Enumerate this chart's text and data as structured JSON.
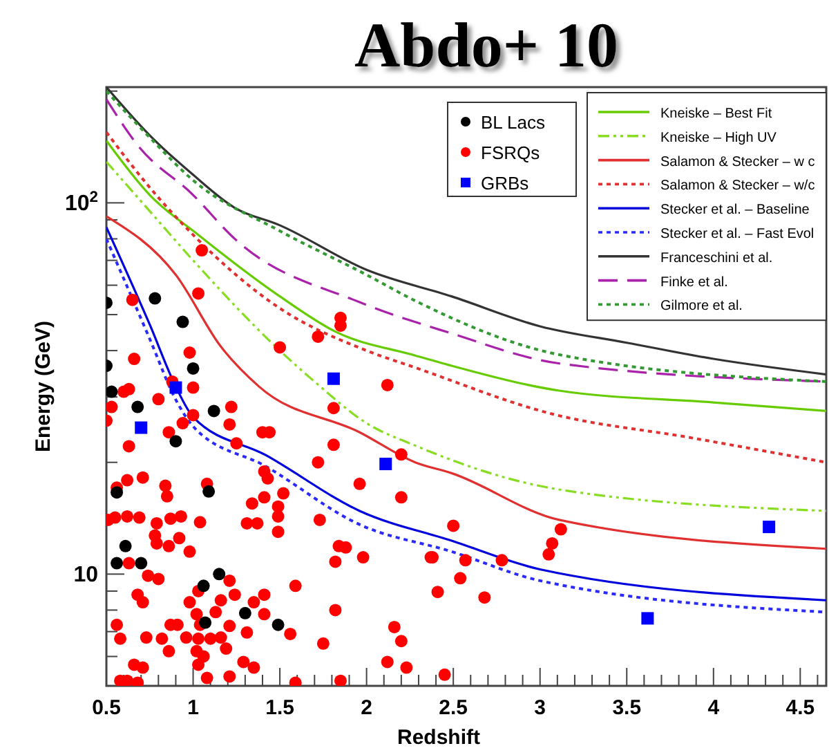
{
  "chart_data": {
    "type": "scatter",
    "title": "Abdo+ 10",
    "xlabel": "Redshift",
    "ylabel": "Energy (GeV)",
    "log": "y",
    "legend": "top right",
    "xlim": [
      0.5,
      4.65
    ],
    "ylim": [
      5,
      205
    ],
    "xticks": [
      0.5,
      {
        "value": 0.6,
        "label": null
      },
      {
        "value": 0.7,
        "label": null
      },
      {
        "value": 0.8,
        "label": null
      },
      {
        "value": 0.9,
        "label": null
      },
      1,
      {
        "value": 1.1,
        "label": null
      },
      {
        "value": 1.2,
        "label": null
      },
      {
        "value": 1.3,
        "label": null
      },
      {
        "value": 1.4,
        "label": null
      },
      1.5,
      {
        "value": 1.6,
        "label": null
      },
      {
        "value": 1.7,
        "label": null
      },
      {
        "value": 1.8,
        "label": null
      },
      {
        "value": 1.9,
        "label": null
      },
      2,
      {
        "value": 2.1,
        "label": null
      },
      {
        "value": 2.2,
        "label": null
      },
      {
        "value": 2.3,
        "label": null
      },
      {
        "value": 2.4,
        "label": null
      },
      2.5,
      {
        "value": 2.6,
        "label": null
      },
      {
        "value": 2.7,
        "label": null
      },
      {
        "value": 2.8,
        "label": null
      },
      {
        "value": 2.9,
        "label": null
      },
      3,
      {
        "value": 3.1,
        "label": null
      },
      {
        "value": 3.2,
        "label": null
      },
      {
        "value": 3.3,
        "label": null
      },
      {
        "value": 3.4,
        "label": null
      },
      3.5,
      {
        "value": 3.6,
        "label": null
      },
      {
        "value": 3.7,
        "label": null
      },
      {
        "value": 3.8,
        "label": null
      },
      {
        "value": 3.9,
        "label": null
      },
      4,
      {
        "value": 4.1,
        "label": null
      },
      {
        "value": 4.2,
        "label": null
      },
      {
        "value": 4.3,
        "label": null
      },
      {
        "value": 4.4,
        "label": null
      },
      4.5,
      {
        "value": 4.6,
        "label": null
      }
    ],
    "yticks": [
      {
        "value": 6,
        "label": null
      },
      {
        "value": 7,
        "label": null
      },
      {
        "value": 8,
        "label": null
      },
      {
        "value": 9,
        "label": null
      },
      10,
      {
        "value": 20,
        "label": null
      },
      {
        "value": 30,
        "label": null
      },
      {
        "value": 40,
        "label": null
      },
      {
        "value": 50,
        "label": null
      },
      {
        "value": 60,
        "label": null
      },
      {
        "value": 70,
        "label": null
      },
      {
        "value": 80,
        "label": null
      },
      {
        "value": 90,
        "label": null
      },
      {
        "value": 100,
        "label": "10$^{2}$"
      },
      {
        "value": 200,
        "label": null
      }
    ],
    "series": [
      {
        "name": "BL Lacs",
        "type": "scatter",
        "marker": "circle",
        "color": "#000000",
        "x": [
          0.5,
          0.78,
          0.94,
          0.5,
          1.0,
          0.53,
          0.68,
          1.12,
          0.9,
          0.56,
          1.09,
          0.61,
          0.56,
          0.7,
          1.15,
          1.06,
          1.07,
          1.3,
          1.49
        ],
        "values": [
          53.8,
          55.3,
          47.8,
          36.4,
          35.8,
          31,
          28.2,
          27.5,
          22.8,
          16.6,
          16.7,
          11.9,
          10.7,
          10.7,
          10.0,
          9.3,
          7.4,
          7.85,
          7.3
        ]
      },
      {
        "name": "FSRQs",
        "type": "scatter",
        "marker": "circle",
        "color": "#ff0000",
        "x": [
          1.05,
          1.03,
          0.65,
          1.5,
          1.72,
          1.85,
          1.85,
          0.66,
          0.98,
          1.0,
          2.12,
          0.6,
          0.63,
          0.8,
          0.88,
          0.53,
          1.81,
          2.5,
          2.38,
          2.57,
          2.54,
          2.41,
          2.68,
          2.78,
          3.05,
          3.07,
          3.12,
          2.45,
          0.5,
          1.22,
          0.94,
          1.0,
          1.21,
          0.86,
          1.4,
          1.44,
          0.63,
          1.25,
          1.81,
          2.2,
          1.41,
          1.43,
          1.72,
          0.56,
          0.62,
          0.71,
          0.84,
          0.85,
          1.08,
          1.52,
          1.41,
          1.96,
          2.2,
          1.34,
          1.49,
          0.51,
          0.55,
          0.62,
          0.69,
          0.79,
          0.87,
          0.93,
          1.04,
          1.31,
          1.37,
          1.49,
          1.49,
          1.73,
          0.78,
          0.79,
          0.86,
          0.92,
          0.98,
          1.84,
          1.88,
          1.82,
          1.98,
          2.37,
          0.63,
          0.74,
          0.8,
          1.59,
          1.21,
          1.03,
          0.98,
          1.16,
          1.24,
          1.35,
          1.41,
          0.68,
          0.71,
          1.02,
          1.13,
          1.41,
          1.82,
          0.56,
          0.87,
          0.91,
          1.04,
          1.21,
          1.31,
          1.56,
          2.16,
          0.58,
          0.73,
          0.82,
          0.96,
          1.03,
          1.1,
          1.16,
          1.75,
          2.2,
          0.86,
          1.02,
          1.06,
          1.19,
          0.66,
          0.71,
          1.03,
          1.29,
          1.35,
          2.12,
          2.23,
          0.58,
          0.62,
          0.68,
          1.08,
          1.21,
          1.59,
          1.85
        ],
        "values": [
          74.5,
          57,
          54.8,
          40.8,
          43.6,
          49,
          46.7,
          38,
          39.5,
          31.8,
          32.3,
          31,
          31.5,
          29.6,
          33,
          28.2,
          28,
          13.5,
          11.1,
          10.9,
          9.75,
          8.95,
          8.65,
          10.9,
          11.3,
          12.1,
          13.2,
          5.36,
          25.9,
          28.2,
          25.5,
          26.8,
          25.3,
          24.1,
          24.1,
          24.1,
          22.1,
          22.5,
          22.3,
          21,
          18.9,
          18.1,
          20,
          17.1,
          17.9,
          18.2,
          17.3,
          16.2,
          17.5,
          16.5,
          16.1,
          17.5,
          16.1,
          15.5,
          15.2,
          14,
          14.2,
          14.3,
          14.2,
          13.7,
          14.1,
          14.3,
          13.8,
          13.7,
          13.7,
          14.3,
          13,
          14,
          12.7,
          12.1,
          11.9,
          12.5,
          11.5,
          11.9,
          11.8,
          10.8,
          11.1,
          11.1,
          10.7,
          9.9,
          9.7,
          9.3,
          9.6,
          9,
          8.4,
          8.5,
          8.8,
          8.4,
          8.8,
          8.8,
          8.4,
          7.8,
          7.9,
          7.8,
          8,
          7.3,
          7.3,
          7.3,
          7.3,
          7.25,
          6.96,
          6.9,
          7.2,
          6.7,
          6.75,
          6.7,
          6.75,
          6.7,
          6.7,
          6.75,
          6.5,
          6.6,
          6.2,
          6.2,
          6,
          6.3,
          5.7,
          5.6,
          5.7,
          5.8,
          5.6,
          5.8,
          5.6,
          5.16,
          5.16,
          5.1,
          5.25,
          5.3,
          5.1,
          5.16
        ]
      },
      {
        "name": "GRBs",
        "type": "scatter",
        "marker": "square",
        "color": "#0000ff",
        "x": [
          0.9,
          1.81,
          0.7,
          2.11,
          3.62,
          4.32
        ],
        "values": [
          31.8,
          33.6,
          24.8,
          19.8,
          7.6,
          13.4
        ]
      },
      {
        "name": "Kneiske – Best Fit",
        "type": "line",
        "line_style": "solid",
        "color": "#66cc00",
        "x": [
          0.5,
          0.75,
          1.03,
          1.5,
          1.82,
          2.28,
          2.49,
          3.11,
          4,
          4.65
        ],
        "values": [
          147,
          105,
          82,
          56,
          45,
          38.8,
          36.4,
          31.2,
          29,
          27.5
        ]
      },
      {
        "name": "Kneiske – High UV",
        "type": "line",
        "line_style": "dashdot",
        "color": "#88dd22",
        "x": [
          0.5,
          0.75,
          1,
          1.5,
          1.7,
          2,
          2.28,
          3.11,
          4.65
        ],
        "values": [
          129,
          95,
          70,
          40,
          33,
          25.5,
          22.2,
          16.9,
          14.8
        ]
      },
      {
        "name": "Salamon & Stecker – w c",
        "type": "line",
        "line_style": "solid",
        "color": "#e03030",
        "x": [
          0.5,
          0.9,
          1.16,
          1.38,
          1.96,
          2.28,
          2.49,
          3.11,
          4.65
        ],
        "values": [
          92,
          64,
          41,
          32,
          24.1,
          20,
          18.7,
          14,
          11.7
        ]
      },
      {
        "name": "Salamon & Stecker – w/c",
        "type": "line",
        "line_style": "dotted",
        "color": "#e03030",
        "x": [
          0.5,
          0.75,
          1,
          1.5,
          2,
          2.28,
          3.07,
          3.87,
          4.65
        ],
        "values": [
          155,
          110,
          82,
          52,
          40,
          36,
          27,
          23.3,
          20
        ]
      },
      {
        "name": "Stecker et al. – Baseline",
        "type": "line",
        "line_style": "solid",
        "color": "#0000dd",
        "x": [
          0.5,
          0.75,
          0.9,
          1,
          1.42,
          1.96,
          2.49,
          3,
          4.65
        ],
        "values": [
          86,
          47,
          32,
          26.5,
          20.9,
          14.8,
          12.3,
          10.3,
          8.5
        ]
      },
      {
        "name": "Stecker et al. – Fast Evol",
        "type": "line",
        "line_style": "dotted",
        "color": "#2a2aff",
        "x": [
          0.5,
          0.75,
          0.9,
          1,
          1.42,
          1.96,
          2.49,
          3,
          4.65
        ],
        "values": [
          80,
          43,
          29.5,
          25,
          19.5,
          13.6,
          11.5,
          9.6,
          7.9
        ]
      },
      {
        "name": "Franceschini et al.",
        "type": "line",
        "line_style": "solid",
        "color": "#333333",
        "x": [
          0.5,
          0.75,
          1,
          1.24,
          1.5,
          2,
          2.49,
          3,
          3.5,
          4,
          4.65
        ],
        "values": [
          205,
          152,
          119,
          97,
          87,
          66,
          56,
          46.5,
          42,
          38,
          34.5
        ]
      },
      {
        "name": "Finke et al.",
        "type": "line",
        "line_style": "dashed",
        "color": "#aa22aa",
        "x": [
          0.5,
          0.68,
          1,
          1.24,
          1.96,
          2.49,
          3.1,
          4.65
        ],
        "values": [
          190,
          143,
          105,
          80,
          54,
          44.5,
          37,
          33
        ]
      },
      {
        "name": "Gilmore et al.",
        "type": "line",
        "line_style": "dotted",
        "color": "#339933",
        "x": [
          0.5,
          0.75,
          1,
          1.5,
          2,
          2.28,
          3.11,
          4.65
        ],
        "values": [
          200,
          150,
          115,
          84,
          64,
          54.5,
          39,
          33
        ]
      }
    ]
  }
}
